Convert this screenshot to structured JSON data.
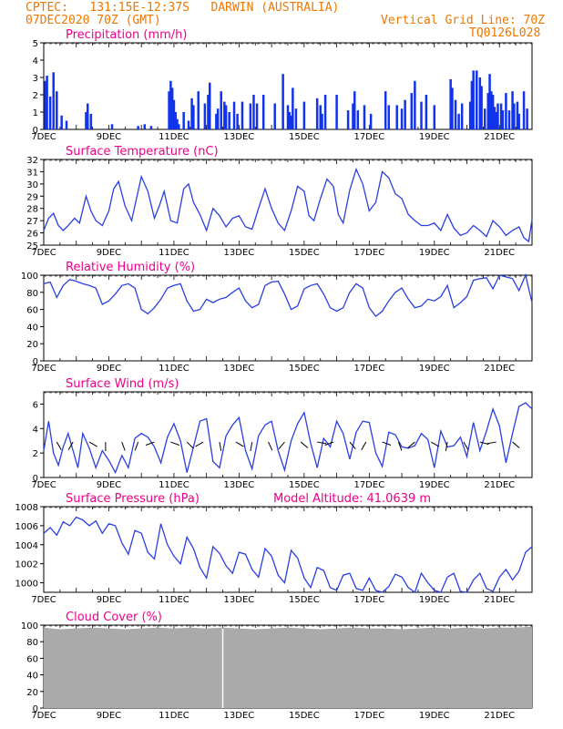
{
  "header": {
    "line1": "CPTEC:   131:15E-12:37S   DARWIN (AUSTRALIA)",
    "line2": "07DEC2020 70Z (GMT)",
    "right1": "Vertical Grid Line: 70Z",
    "right2": "TQ0126L028"
  },
  "colors": {
    "header": "#ee7700",
    "title": "#ee0088",
    "line": "#2a3fe0",
    "bar": "#1133ee",
    "cloud": "#aaaaaa",
    "arrow": "#000000"
  },
  "chart_data": [
    {
      "type": "bar",
      "title": "Precipitation (mm/h)",
      "ylim": [
        0,
        5
      ],
      "yticks": [
        0,
        1,
        2,
        3,
        4,
        5
      ],
      "xticks": [
        "7DEC",
        "9DEC",
        "11DEC",
        "13DEC",
        "15DEC",
        "17DEC",
        "19DEC",
        "21DEC"
      ],
      "x": [
        0.05,
        0.1,
        0.2,
        0.3,
        0.4,
        0.55,
        0.7,
        1.3,
        1.35,
        1.45,
        2.1,
        2.9,
        3.1,
        3.3,
        3.85,
        3.9,
        3.95,
        4.0,
        4.05,
        4.1,
        4.15,
        4.3,
        4.45,
        4.55,
        4.6,
        4.75,
        4.95,
        5.05,
        5.1,
        5.3,
        5.35,
        5.45,
        5.55,
        5.6,
        5.7,
        5.85,
        5.95,
        6.1,
        6.35,
        6.45,
        6.55,
        6.75,
        7.1,
        7.35,
        7.5,
        7.55,
        7.6,
        7.65,
        7.75,
        8.0,
        8.4,
        8.5,
        8.55,
        8.65,
        9.0,
        9.35,
        9.5,
        9.55,
        9.65,
        9.85,
        10.05,
        10.5,
        10.6,
        10.85,
        11.0,
        11.1,
        11.3,
        11.4,
        11.6,
        11.75,
        12.0,
        12.5,
        12.55,
        12.65,
        12.75,
        12.85,
        13.1,
        13.15,
        13.2,
        13.3,
        13.4,
        13.45,
        13.55,
        13.65,
        13.7,
        13.75,
        13.8,
        13.85,
        13.9,
        13.95,
        14.05,
        14.1,
        14.2,
        14.3,
        14.4,
        14.45,
        14.55,
        14.6,
        14.75,
        14.85
      ],
      "values": [
        2.8,
        3.1,
        1.9,
        3.3,
        2.2,
        0.8,
        0.5,
        1.0,
        1.5,
        0.9,
        0.3,
        0.2,
        0.3,
        0.2,
        2.2,
        2.8,
        2.4,
        1.7,
        1.0,
        0.6,
        0.3,
        1.0,
        0.5,
        1.8,
        1.4,
        2.2,
        1.5,
        2.0,
        2.7,
        0.9,
        1.2,
        2.2,
        1.6,
        1.4,
        1.0,
        1.6,
        0.9,
        1.6,
        1.5,
        2.0,
        1.5,
        2.0,
        1.5,
        3.2,
        1.4,
        1.0,
        0.8,
        2.4,
        1.2,
        1.6,
        1.8,
        1.4,
        0.9,
        2.0,
        2.0,
        1.1,
        1.5,
        2.2,
        1.1,
        1.4,
        0.9,
        2.2,
        1.4,
        1.4,
        1.2,
        1.7,
        2.1,
        2.8,
        1.6,
        2.0,
        1.4,
        2.9,
        2.4,
        1.7,
        0.9,
        1.5,
        1.6,
        2.8,
        3.4,
        3.4,
        3.0,
        2.5,
        1.2,
        2.1,
        3.2,
        2.2,
        2.0,
        1.3,
        1.0,
        1.5,
        1.5,
        1.1,
        2.1,
        1.1,
        2.2,
        1.5,
        1.6,
        0.9,
        2.2,
        1.2
      ]
    },
    {
      "type": "line",
      "title": "Surface Temperature (nC)",
      "ylim": [
        25,
        32
      ],
      "yticks": [
        25,
        26,
        27,
        28,
        29,
        30,
        31,
        32
      ],
      "xticks": [
        "7DEC",
        "9DEC",
        "11DEC",
        "13DEC",
        "15DEC",
        "17DEC",
        "19DEC",
        "21DEC"
      ],
      "x": [
        0,
        0.15,
        0.3,
        0.45,
        0.6,
        0.75,
        0.95,
        1.1,
        1.3,
        1.45,
        1.6,
        1.8,
        2.0,
        2.15,
        2.3,
        2.5,
        2.7,
        2.85,
        3.0,
        3.2,
        3.4,
        3.55,
        3.7,
        3.9,
        4.1,
        4.3,
        4.45,
        4.6,
        4.8,
        5.0,
        5.2,
        5.4,
        5.6,
        5.8,
        6.0,
        6.2,
        6.4,
        6.6,
        6.8,
        7.0,
        7.2,
        7.4,
        7.6,
        7.8,
        8.0,
        8.15,
        8.3,
        8.5,
        8.7,
        8.9,
        9.05,
        9.2,
        9.4,
        9.6,
        9.8,
        10.0,
        10.2,
        10.4,
        10.6,
        10.8,
        11.0,
        11.2,
        11.4,
        11.6,
        11.8,
        12.0,
        12.2,
        12.4,
        12.6,
        12.8,
        13.0,
        13.2,
        13.4,
        13.6,
        13.8,
        14.0,
        14.2,
        14.4,
        14.6,
        14.75,
        14.9,
        15.0
      ],
      "values": [
        26.2,
        27.2,
        27.6,
        26.6,
        26.2,
        26.6,
        27.2,
        26.8,
        29.0,
        27.8,
        27.0,
        26.6,
        27.8,
        29.6,
        30.2,
        28.2,
        27.0,
        28.8,
        30.6,
        29.4,
        27.2,
        28.2,
        29.4,
        27.0,
        26.8,
        29.6,
        30.0,
        28.5,
        27.5,
        26.2,
        28.0,
        27.4,
        26.5,
        27.2,
        27.4,
        26.5,
        26.3,
        28.0,
        29.6,
        28.0,
        26.8,
        26.2,
        27.8,
        29.8,
        29.4,
        27.4,
        27.0,
        28.8,
        30.4,
        29.8,
        27.5,
        26.8,
        29.5,
        31.2,
        30.0,
        27.8,
        28.5,
        31.0,
        30.5,
        29.2,
        28.8,
        27.5,
        27.0,
        26.6,
        26.6,
        26.8,
        26.2,
        27.5,
        26.4,
        25.8,
        26.0,
        26.6,
        26.2,
        25.7,
        27.0,
        26.5,
        25.8,
        26.2,
        26.5,
        25.6,
        25.3,
        27.1
      ]
    },
    {
      "type": "line",
      "title": "Relative Humidity (%)",
      "ylim": [
        0,
        100
      ],
      "yticks": [
        0,
        20,
        40,
        60,
        80,
        100
      ],
      "xticks": [
        "7DEC",
        "9DEC",
        "11DEC",
        "13DEC",
        "15DEC",
        "17DEC",
        "19DEC",
        "21DEC"
      ],
      "x": [
        0,
        0.2,
        0.4,
        0.6,
        0.8,
        1.0,
        1.2,
        1.4,
        1.6,
        1.8,
        2.0,
        2.2,
        2.4,
        2.6,
        2.8,
        3.0,
        3.2,
        3.4,
        3.6,
        3.8,
        4.0,
        4.2,
        4.4,
        4.6,
        4.8,
        5.0,
        5.2,
        5.4,
        5.6,
        5.8,
        6.0,
        6.2,
        6.4,
        6.6,
        6.8,
        7.0,
        7.2,
        7.4,
        7.6,
        7.8,
        8.0,
        8.2,
        8.4,
        8.6,
        8.8,
        9.0,
        9.2,
        9.4,
        9.6,
        9.8,
        10.0,
        10.2,
        10.4,
        10.6,
        10.8,
        11.0,
        11.2,
        11.4,
        11.6,
        11.8,
        12.0,
        12.2,
        12.4,
        12.6,
        12.8,
        13.0,
        13.2,
        13.4,
        13.6,
        13.8,
        14.0,
        14.2,
        14.4,
        14.6,
        14.8,
        15.0
      ],
      "values": [
        90,
        92,
        74,
        88,
        95,
        93,
        90,
        88,
        85,
        66,
        70,
        78,
        88,
        90,
        85,
        60,
        55,
        62,
        72,
        85,
        88,
        90,
        70,
        58,
        60,
        72,
        68,
        72,
        74,
        80,
        85,
        70,
        62,
        66,
        88,
        92,
        93,
        78,
        60,
        64,
        84,
        88,
        90,
        78,
        62,
        58,
        62,
        80,
        90,
        85,
        62,
        52,
        58,
        70,
        80,
        85,
        72,
        62,
        64,
        72,
        70,
        75,
        88,
        62,
        68,
        75,
        94,
        96,
        97,
        84,
        100,
        98,
        96,
        82,
        100,
        68
      ]
    },
    {
      "type": "line",
      "title": "Surface Wind (m/s)",
      "ylim": [
        0,
        7
      ],
      "yticks": [
        0,
        2,
        4,
        6
      ],
      "xticks": [
        "7DEC",
        "9DEC",
        "11DEC",
        "13DEC",
        "15DEC",
        "17DEC",
        "19DEC",
        "21DEC"
      ],
      "x": [
        0,
        0.15,
        0.3,
        0.45,
        0.6,
        0.75,
        0.9,
        1.05,
        1.2,
        1.4,
        1.6,
        1.8,
        2.0,
        2.2,
        2.4,
        2.6,
        2.8,
        3.0,
        3.2,
        3.4,
        3.6,
        3.8,
        4.0,
        4.2,
        4.4,
        4.6,
        4.8,
        5.0,
        5.2,
        5.4,
        5.6,
        5.8,
        6.0,
        6.2,
        6.4,
        6.6,
        6.8,
        7.0,
        7.2,
        7.4,
        7.6,
        7.8,
        8.0,
        8.2,
        8.4,
        8.6,
        8.8,
        9.0,
        9.2,
        9.4,
        9.6,
        9.8,
        10.0,
        10.2,
        10.4,
        10.6,
        10.8,
        11.0,
        11.2,
        11.4,
        11.6,
        11.8,
        12.0,
        12.2,
        12.4,
        12.6,
        12.8,
        13.0,
        13.2,
        13.4,
        13.6,
        13.8,
        14.0,
        14.2,
        14.4,
        14.6,
        14.8,
        15.0
      ],
      "values": [
        2.2,
        4.6,
        2.0,
        1.0,
        2.5,
        3.6,
        2.2,
        0.8,
        3.6,
        2.4,
        0.8,
        2.2,
        1.4,
        0.4,
        1.8,
        0.8,
        3.2,
        3.6,
        3.3,
        2.5,
        1.2,
        3.3,
        4.4,
        3.0,
        0.4,
        2.5,
        4.6,
        4.8,
        1.3,
        0.8,
        3.4,
        4.3,
        4.9,
        2.2,
        0.7,
        3.4,
        4.3,
        4.6,
        2.2,
        0.6,
        3.0,
        4.4,
        5.3,
        2.8,
        0.8,
        3.2,
        2.5,
        4.6,
        3.6,
        1.5,
        3.7,
        4.6,
        4.5,
        2.0,
        0.9,
        3.7,
        3.5,
        2.5,
        2.4,
        2.6,
        3.6,
        3.1,
        0.8,
        3.8,
        2.5,
        2.6,
        3.3,
        1.7,
        4.5,
        2.2,
        3.8,
        5.6,
        4.2,
        1.2,
        3.6,
        5.8,
        6.1,
        5.6
      ]
    },
    {
      "type": "line",
      "title": "Surface Pressure (hPa)",
      "annotation": "Model Altitude: 41.0639 m",
      "ylim": [
        999,
        1008
      ],
      "yticks": [
        1000,
        1002,
        1004,
        1006,
        1008
      ],
      "xticks": [
        "7DEC",
        "9DEC",
        "11DEC",
        "13DEC",
        "15DEC",
        "17DEC",
        "19DEC",
        "21DEC"
      ],
      "x": [
        0,
        0.2,
        0.4,
        0.6,
        0.8,
        1.0,
        1.2,
        1.4,
        1.6,
        1.8,
        2.0,
        2.2,
        2.4,
        2.6,
        2.8,
        3.0,
        3.2,
        3.4,
        3.6,
        3.8,
        4.0,
        4.2,
        4.4,
        4.6,
        4.8,
        5.0,
        5.2,
        5.4,
        5.6,
        5.8,
        6.0,
        6.2,
        6.4,
        6.6,
        6.8,
        7.0,
        7.2,
        7.4,
        7.6,
        7.8,
        8.0,
        8.2,
        8.4,
        8.6,
        8.8,
        9.0,
        9.2,
        9.4,
        9.6,
        9.8,
        10.0,
        10.2,
        10.4,
        10.6,
        10.8,
        11.0,
        11.2,
        11.4,
        11.6,
        11.8,
        12.0,
        12.2,
        12.4,
        12.6,
        12.8,
        13.0,
        13.2,
        13.4,
        13.6,
        13.8,
        14.0,
        14.2,
        14.4,
        14.6,
        14.8,
        15.0
      ],
      "values": [
        1005.2,
        1005.8,
        1005.0,
        1006.4,
        1006.0,
        1006.9,
        1006.6,
        1006.0,
        1006.5,
        1005.2,
        1006.2,
        1006.0,
        1004.2,
        1003.0,
        1005.5,
        1005.2,
        1003.2,
        1002.5,
        1006.2,
        1004.0,
        1002.8,
        1002.0,
        1004.8,
        1003.6,
        1001.6,
        1000.5,
        1003.8,
        1003.1,
        1001.8,
        1001.0,
        1003.2,
        1003.0,
        1001.4,
        1000.6,
        1003.6,
        1002.8,
        1000.8,
        1000.0,
        1003.4,
        1002.6,
        1000.5,
        999.5,
        1001.6,
        1001.3,
        999.5,
        999.2,
        1000.8,
        1001.0,
        999.4,
        999.2,
        1000.5,
        999.2,
        999.0,
        999.6,
        1000.9,
        1000.6,
        999.5,
        999.0,
        1001.0,
        1000.0,
        999.2,
        999.0,
        1000.6,
        1001.0,
        999.1,
        999.0,
        1000.3,
        1001.0,
        999.4,
        999.1,
        1000.6,
        1001.4,
        1000.3,
        1001.2,
        1003.2,
        1003.8
      ]
    },
    {
      "type": "area",
      "title": "Cloud Cover (%)",
      "ylim": [
        0,
        100
      ],
      "yticks": [
        0,
        20,
        40,
        60,
        80,
        100
      ],
      "xticks": [
        "7DEC",
        "9DEC",
        "11DEC",
        "13DEC",
        "15DEC",
        "17DEC",
        "19DEC",
        "21DEC"
      ],
      "x": [
        0,
        0.5,
        1.0,
        1.5,
        2.0,
        2.5,
        3.0,
        3.5,
        4.0,
        4.5,
        5.0,
        5.5,
        6.0,
        6.5,
        7.0,
        7.5,
        8.0,
        8.5,
        9.0,
        9.5,
        10.0,
        10.5,
        11.0,
        11.5,
        12.0,
        12.5,
        13.0,
        13.5,
        14.0,
        14.5,
        15.0
      ],
      "values": [
        97,
        95,
        96,
        97,
        96,
        95,
        96,
        97,
        96,
        97,
        96,
        97,
        96,
        95,
        96,
        97,
        96,
        95,
        96,
        97,
        96,
        96,
        95,
        96,
        97,
        96,
        97,
        96,
        97,
        97,
        98
      ]
    }
  ]
}
